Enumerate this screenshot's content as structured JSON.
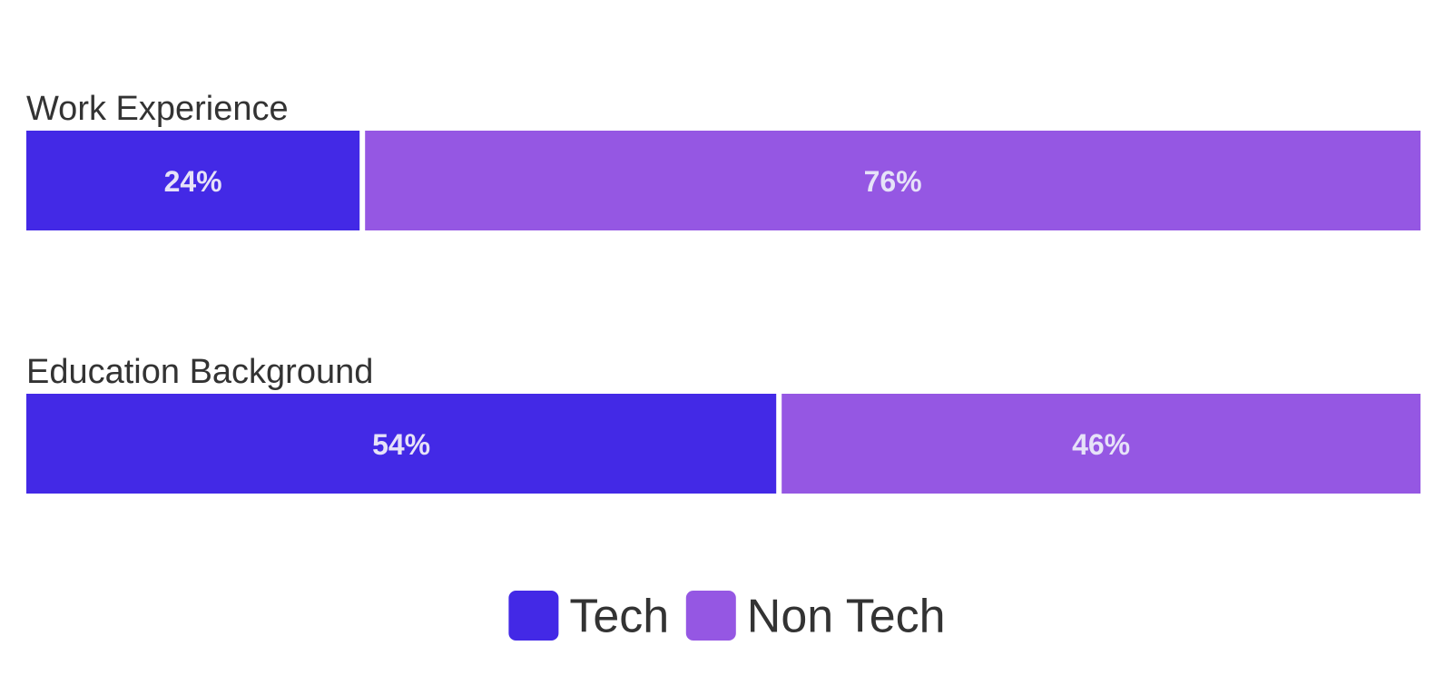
{
  "chart_data": {
    "type": "bar",
    "stacked": true,
    "orientation": "horizontal",
    "categories": [
      "Work Experience",
      "Education Background"
    ],
    "series": [
      {
        "name": "Tech",
        "values": [
          24,
          54
        ],
        "labels": [
          "24%",
          "54%"
        ],
        "color": "#4329E6"
      },
      {
        "name": "Non Tech",
        "values": [
          76,
          46
        ],
        "labels": [
          "76%",
          "46%"
        ],
        "color": "#9557E3"
      }
    ],
    "unit": "%",
    "legend_position": "bottom-center"
  },
  "colors": {
    "tech": "#4329E6",
    "non_tech": "#9557E3",
    "bar_label": "#E6E2F8",
    "text": "#333333"
  }
}
